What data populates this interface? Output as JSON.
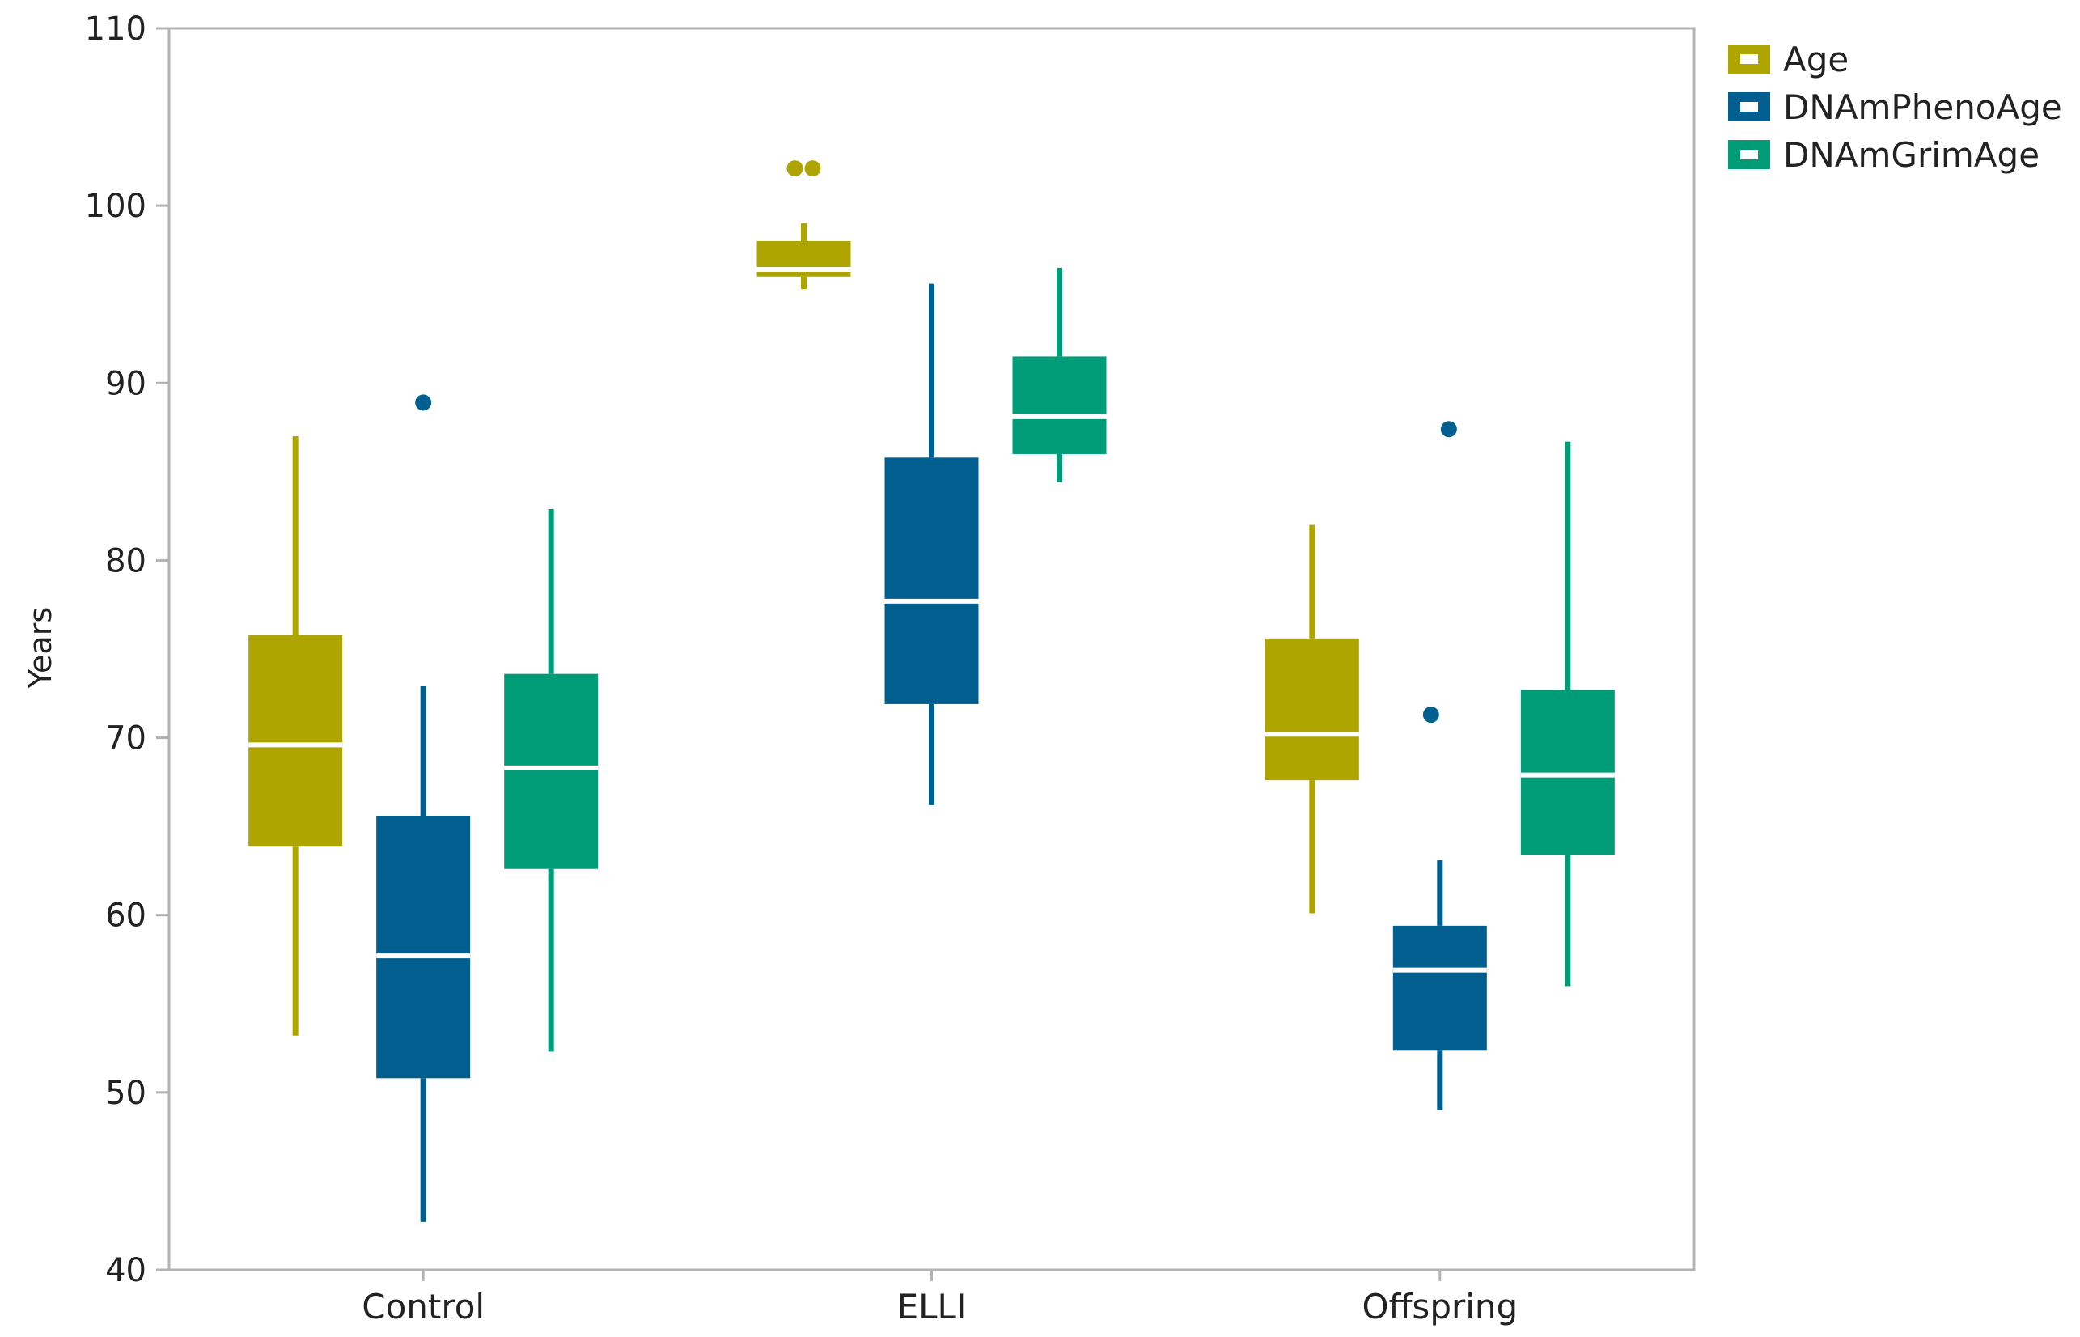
{
  "chart_data": {
    "type": "boxplot",
    "title": "",
    "xlabel": "",
    "ylabel": "Years",
    "ylim": [
      40,
      110
    ],
    "yticks": [
      40,
      50,
      60,
      70,
      80,
      90,
      100,
      110
    ],
    "grid": false,
    "legend_position": "top-right",
    "categories": [
      "Control",
      "ELLI",
      "Offspring"
    ],
    "series": [
      {
        "name": "Age",
        "color": "#aea500",
        "boxes": [
          {
            "whisker_low": 53.2,
            "q1": 63.9,
            "median": 69.6,
            "q3": 75.8,
            "whisker_high": 87.0,
            "outliers": []
          },
          {
            "whisker_low": 95.3,
            "q1": 96.0,
            "median": 96.4,
            "q3": 98.0,
            "whisker_high": 99.0,
            "outliers": [
              102.1,
              102.1
            ]
          },
          {
            "whisker_low": 60.1,
            "q1": 67.6,
            "median": 70.2,
            "q3": 75.6,
            "whisker_high": 82.0,
            "outliers": []
          }
        ]
      },
      {
        "name": "DNAmPhenoAge",
        "color": "#005f8f",
        "boxes": [
          {
            "whisker_low": 42.7,
            "q1": 50.8,
            "median": 57.7,
            "q3": 65.6,
            "whisker_high": 72.9,
            "outliers": [
              88.9
            ]
          },
          {
            "whisker_low": 66.2,
            "q1": 71.9,
            "median": 77.7,
            "q3": 85.8,
            "whisker_high": 95.6,
            "outliers": []
          },
          {
            "whisker_low": 49.0,
            "q1": 52.4,
            "median": 56.9,
            "q3": 59.4,
            "whisker_high": 63.1,
            "outliers": [
              71.3,
              87.4
            ]
          }
        ]
      },
      {
        "name": "DNAmGrimAge",
        "color": "#009b77",
        "boxes": [
          {
            "whisker_low": 52.3,
            "q1": 62.6,
            "median": 68.3,
            "q3": 73.6,
            "whisker_high": 82.9,
            "outliers": []
          },
          {
            "whisker_low": 84.4,
            "q1": 86.0,
            "median": 88.1,
            "q3": 91.5,
            "whisker_high": 96.5,
            "outliers": []
          },
          {
            "whisker_low": 56.0,
            "q1": 63.4,
            "median": 67.9,
            "q3": 72.7,
            "whisker_high": 86.7,
            "outliers": []
          }
        ]
      }
    ]
  }
}
